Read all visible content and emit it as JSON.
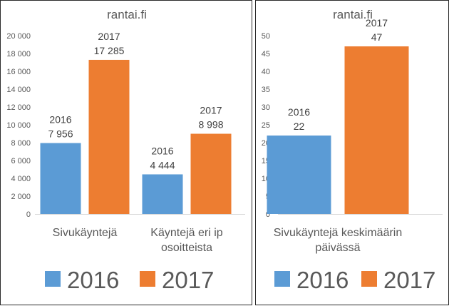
{
  "chart_data": [
    {
      "type": "bar",
      "title": "rantai.fi",
      "categories": [
        [
          "Sivukäyntejä"
        ],
        [
          "Käyntejä eri ip",
          "osoitteista"
        ]
      ],
      "series": [
        {
          "name": "2016",
          "color": "#5B9BD5",
          "values": [
            7956,
            4444
          ],
          "labels": [
            "7 956",
            "4 444"
          ]
        },
        {
          "name": "2017",
          "color": "#ED7D31",
          "values": [
            17285,
            8998
          ],
          "labels": [
            "17 285",
            "8 998"
          ]
        }
      ],
      "ylim": [
        0,
        20000
      ],
      "yticks": [
        0,
        2000,
        4000,
        6000,
        8000,
        10000,
        12000,
        14000,
        16000,
        18000,
        20000
      ],
      "ytick_labels": [
        "0",
        "2 000",
        "4 000",
        "6 000",
        "8 000",
        "10 000",
        "12 000",
        "14 000",
        "16 000",
        "18 000",
        "20 000"
      ],
      "grid": false,
      "legend": "bottom"
    },
    {
      "type": "bar",
      "title": "rantai.fi",
      "categories": [
        [
          "Sivukäyntejä keskimäärin",
          "päivässä"
        ]
      ],
      "series": [
        {
          "name": "2016",
          "color": "#5B9BD5",
          "values": [
            22
          ],
          "labels": [
            "22"
          ]
        },
        {
          "name": "2017",
          "color": "#ED7D31",
          "values": [
            47
          ],
          "labels": [
            "47"
          ]
        }
      ],
      "ylim": [
        0,
        50
      ],
      "yticks": [
        0,
        5,
        10,
        15,
        20,
        25,
        30,
        35,
        40,
        45,
        50
      ],
      "ytick_labels": [
        "0",
        "5",
        "10",
        "15",
        "20",
        "25",
        "30",
        "35",
        "40",
        "45",
        "50"
      ],
      "grid": false,
      "legend": "bottom"
    }
  ]
}
